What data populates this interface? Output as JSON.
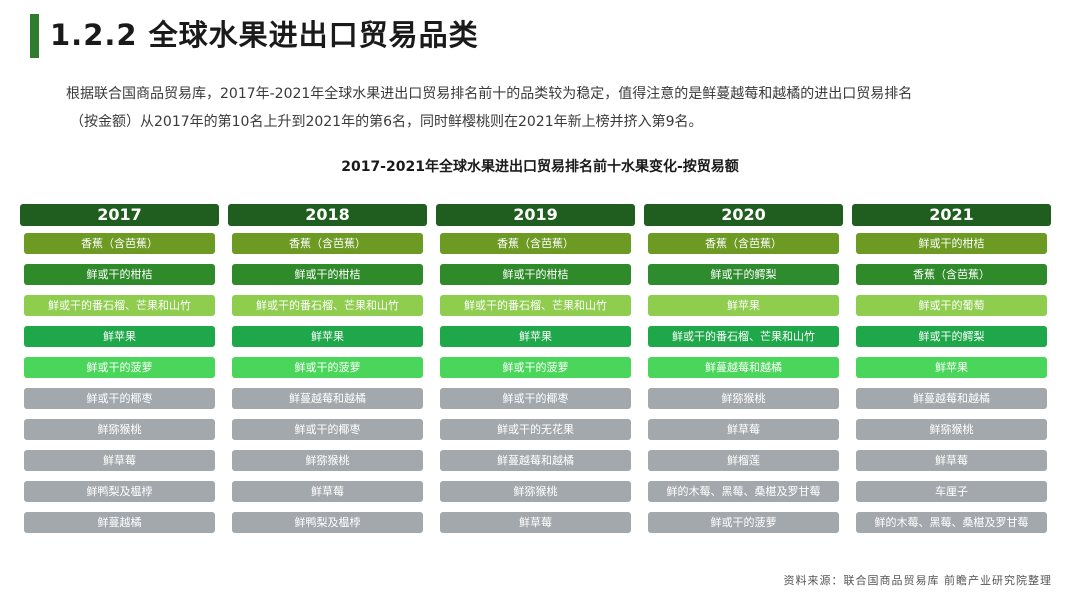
{
  "header": {
    "title": "1.2.2 全球水果进出口贸易品类"
  },
  "intro": {
    "line1": "根据联合国商品贸易库，2017年-2021年全球水果进出口贸易排名前十的品类较为稳定，值得注意的是鲜蔓越莓和越橘的进出口贸易排名",
    "line2": "（按金额）从2017年的第10名上升到2021年的第6名，同时鲜樱桃则在2021年新上榜并挤入第9名。"
  },
  "table": {
    "title": "2017-2021年全球水果进出口贸易排名前十水果变化-按贸易额",
    "columns": [
      {
        "year": "2017",
        "items": [
          {
            "label": "香蕉（含芭蕉）",
            "category": "banana"
          },
          {
            "label": "鲜或干的柑桔",
            "category": "citrus"
          },
          {
            "label": "鲜或干的番石榴、芒果和山竹",
            "category": "guava"
          },
          {
            "label": "鲜苹果",
            "category": "apple"
          },
          {
            "label": "鲜或干的菠萝",
            "category": "pineapple"
          },
          {
            "label": "鲜或干的椰枣",
            "category": "other"
          },
          {
            "label": "鲜猕猴桃",
            "category": "other"
          },
          {
            "label": "鲜草莓",
            "category": "other"
          },
          {
            "label": "鲜鸭梨及榅桲",
            "category": "other"
          },
          {
            "label": "鲜蔓越橘",
            "category": "other"
          }
        ]
      },
      {
        "year": "2018",
        "items": [
          {
            "label": "香蕉（含芭蕉）",
            "category": "banana"
          },
          {
            "label": "鲜或干的柑桔",
            "category": "citrus"
          },
          {
            "label": "鲜或干的番石榴、芒果和山竹",
            "category": "guava"
          },
          {
            "label": "鲜苹果",
            "category": "apple"
          },
          {
            "label": "鲜或干的菠萝",
            "category": "pineapple"
          },
          {
            "label": "鲜蔓越莓和越橘",
            "category": "other"
          },
          {
            "label": "鲜或干的椰枣",
            "category": "other"
          },
          {
            "label": "鲜猕猴桃",
            "category": "other"
          },
          {
            "label": "鲜草莓",
            "category": "other"
          },
          {
            "label": "鲜鸭梨及榅桲",
            "category": "other"
          }
        ]
      },
      {
        "year": "2019",
        "items": [
          {
            "label": "香蕉（含芭蕉）",
            "category": "banana"
          },
          {
            "label": "鲜或干的柑桔",
            "category": "citrus"
          },
          {
            "label": "鲜或干的番石榴、芒果和山竹",
            "category": "guava"
          },
          {
            "label": "鲜苹果",
            "category": "apple"
          },
          {
            "label": "鲜或干的菠萝",
            "category": "pineapple"
          },
          {
            "label": "鲜或干的椰枣",
            "category": "other"
          },
          {
            "label": "鲜或干的无花果",
            "category": "other"
          },
          {
            "label": "鲜蔓越莓和越橘",
            "category": "other"
          },
          {
            "label": "鲜猕猴桃",
            "category": "other"
          },
          {
            "label": "鲜草莓",
            "category": "other"
          }
        ]
      },
      {
        "year": "2020",
        "items": [
          {
            "label": "香蕉（含芭蕉）",
            "category": "banana"
          },
          {
            "label": "鲜或干的鳄梨",
            "category": "pear"
          },
          {
            "label": "鲜苹果",
            "category": "guava"
          },
          {
            "label": "鲜或干的番石榴、芒果和山竹",
            "category": "apple"
          },
          {
            "label": "鲜蔓越莓和越橘",
            "category": "pineapple"
          },
          {
            "label": "鲜猕猴桃",
            "category": "other"
          },
          {
            "label": "鲜草莓",
            "category": "other"
          },
          {
            "label": "鲜榴莲",
            "category": "other"
          },
          {
            "label": "鲜的木莓、黑莓、桑椹及罗甘莓",
            "category": "other"
          },
          {
            "label": "鲜或干的菠萝",
            "category": "other"
          }
        ]
      },
      {
        "year": "2021",
        "items": [
          {
            "label": "鲜或干的柑桔",
            "category": "banana"
          },
          {
            "label": "香蕉（含芭蕉）",
            "category": "citrus"
          },
          {
            "label": "鲜或干的葡萄",
            "category": "grape"
          },
          {
            "label": "鲜或干的鳄梨",
            "category": "apple"
          },
          {
            "label": "鲜苹果",
            "category": "pineapple"
          },
          {
            "label": "鲜蔓越莓和越橘",
            "category": "other"
          },
          {
            "label": "鲜猕猴桃",
            "category": "other"
          },
          {
            "label": "鲜草莓",
            "category": "other"
          },
          {
            "label": "车厘子",
            "category": "other"
          },
          {
            "label": "鲜的木莓、黑莓、桑椹及罗甘莓",
            "category": "other"
          }
        ]
      }
    ]
  },
  "footer": {
    "source": "资料来源：联合国商品贸易库 前瞻产业研究院整理"
  },
  "colors": {
    "title_bar": "#2e7d2e",
    "year_header": "#1f5e1f",
    "banana": "#6c9a23",
    "citrus": "#2f8a2a",
    "guava": "#8fcd4f",
    "apple": "#1ea84a",
    "pineapple": "#4ad65a",
    "pear": "#2e8c2e",
    "grape": "#8fcd4f",
    "other": "#a3a8ac"
  }
}
